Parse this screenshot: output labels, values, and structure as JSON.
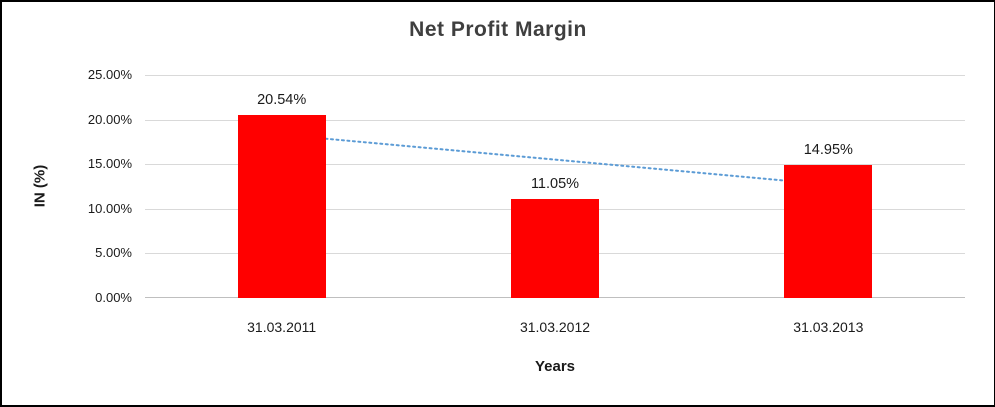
{
  "chart_data": {
    "type": "bar",
    "title": "Net Profit Margin",
    "xlabel": "Years",
    "ylabel": "IN (%)",
    "categories": [
      "31.03.2011",
      "31.03.2012",
      "31.03.2013"
    ],
    "values": [
      20.54,
      11.05,
      14.95
    ],
    "data_labels": [
      "20.54%",
      "11.05%",
      "14.95%"
    ],
    "ylim": [
      0,
      25
    ],
    "ytick_step": 5,
    "ytick_labels": [
      "0.00%",
      "5.00%",
      "10.00%",
      "15.00%",
      "20.00%",
      "25.00%"
    ],
    "grid": true,
    "legend": "none",
    "bar_color": "#ff0000",
    "trendline": {
      "type": "linear",
      "style": "dotted",
      "color": "#5b9bd5"
    }
  },
  "colors": {
    "grid": "#d9d9d9",
    "axis": "#bfbfbf",
    "title_text": "#3f3f3f",
    "tick_text": "#1a1a1a"
  }
}
